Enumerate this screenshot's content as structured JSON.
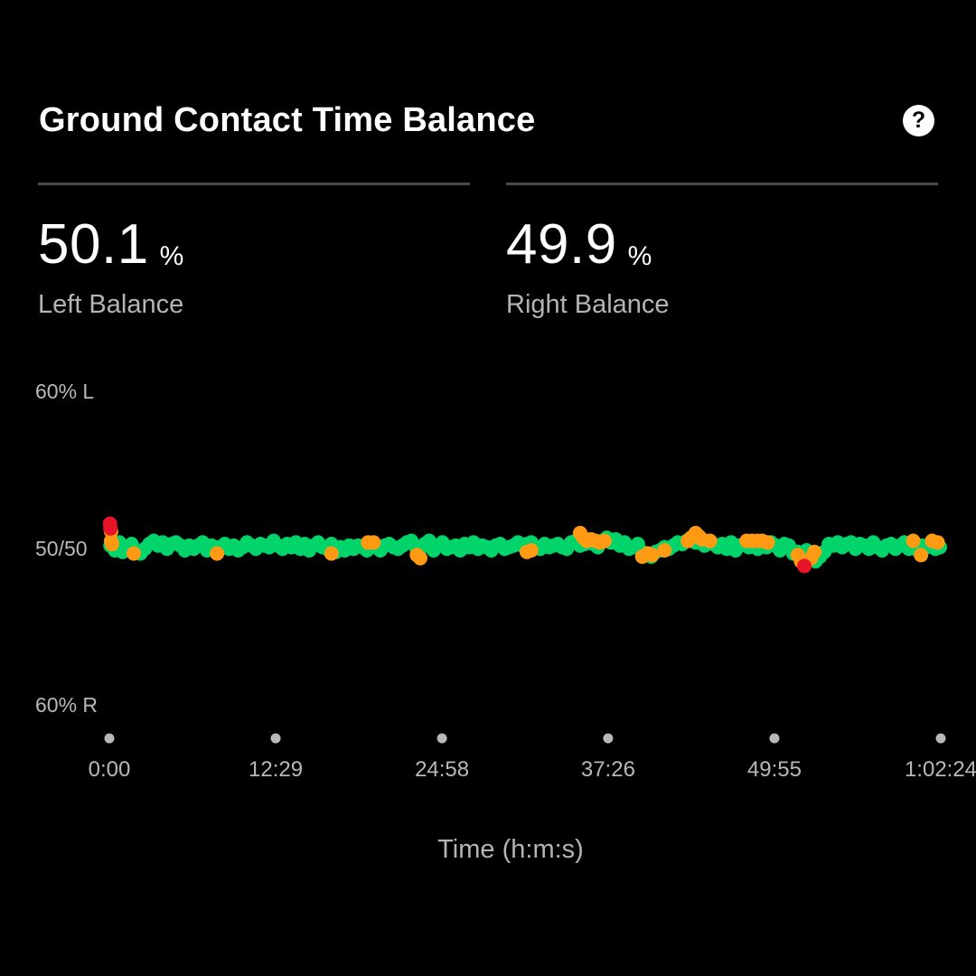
{
  "header": {
    "title": "Ground Contact Time Balance",
    "help_icon": "help-circle-icon"
  },
  "stats": {
    "left": {
      "value": "50.1",
      "unit": "%",
      "label": "Left Balance"
    },
    "right": {
      "value": "49.9",
      "unit": "%",
      "label": "Right Balance"
    }
  },
  "colors": {
    "green": "#00d46a",
    "orange": "#ff9a12",
    "red": "#e8142a",
    "divider": "#4a4a4a",
    "muted_text": "#b4b4b4"
  },
  "chart_data": {
    "type": "scatter",
    "title": "",
    "xlabel": "Time (h:m:s)",
    "ylabel": "",
    "y_tick_labels": {
      "top": "60% L",
      "middle": "50/50",
      "bottom": "60% R"
    },
    "ylim": [
      -10,
      10
    ],
    "y_meaning": "positive = left balance above 50%, negative = right balance above 50%",
    "xlim": [
      0,
      3744
    ],
    "x_ticks": [
      0,
      749,
      1498,
      2246,
      2995,
      3744
    ],
    "x_tick_labels": [
      "0:00",
      "12:29",
      "24:58",
      "37:26",
      "49:55",
      "1:02:24"
    ],
    "series": [
      {
        "color_key": "green",
        "points": [
          [
            5,
            0.1
          ],
          [
            25,
            -0.2
          ],
          [
            45,
            0.3
          ],
          [
            60,
            -0.3
          ],
          [
            80,
            -0.1
          ],
          [
            100,
            0.2
          ],
          [
            120,
            -0.2
          ],
          [
            140,
            -0.4
          ],
          [
            160,
            -0.1
          ],
          [
            180,
            0.2
          ],
          [
            200,
            0.4
          ],
          [
            220,
            0.1
          ],
          [
            240,
            0.3
          ],
          [
            260,
            -0.1
          ],
          [
            280,
            0.2
          ],
          [
            300,
            0.3
          ],
          [
            320,
            0.1
          ],
          [
            340,
            -0.2
          ],
          [
            360,
            0.1
          ],
          [
            380,
            -0.1
          ],
          [
            400,
            0.1
          ],
          [
            420,
            0.3
          ],
          [
            440,
            -0.2
          ],
          [
            460,
            0.1
          ],
          [
            480,
            0.0
          ],
          [
            500,
            -0.1
          ],
          [
            520,
            0.2
          ],
          [
            540,
            -0.1
          ],
          [
            560,
            0.1
          ],
          [
            580,
            -0.2
          ],
          [
            600,
            0.0
          ],
          [
            620,
            0.3
          ],
          [
            640,
            0.1
          ],
          [
            660,
            -0.1
          ],
          [
            680,
            0.2
          ],
          [
            700,
            0.1
          ],
          [
            720,
            0.0
          ],
          [
            740,
            0.4
          ],
          [
            760,
            0.1
          ],
          [
            780,
            -0.1
          ],
          [
            800,
            0.2
          ],
          [
            820,
            0.0
          ],
          [
            840,
            0.3
          ],
          [
            860,
            -0.1
          ],
          [
            880,
            0.2
          ],
          [
            900,
            -0.2
          ],
          [
            920,
            0.1
          ],
          [
            940,
            0.3
          ],
          [
            960,
            0.0
          ],
          [
            980,
            -0.1
          ],
          [
            1000,
            0.2
          ],
          [
            1020,
            -0.3
          ],
          [
            1040,
            0.0
          ],
          [
            1060,
            -0.2
          ],
          [
            1080,
            0.1
          ],
          [
            1100,
            -0.1
          ],
          [
            1120,
            0.1
          ],
          [
            1140,
            0.0
          ],
          [
            1160,
            -0.2
          ],
          [
            1180,
            0.1
          ],
          [
            1200,
            0.0
          ],
          [
            1220,
            -0.2
          ],
          [
            1240,
            0.1
          ],
          [
            1260,
            0.2
          ],
          [
            1280,
            0.0
          ],
          [
            1300,
            -0.1
          ],
          [
            1320,
            0.1
          ],
          [
            1340,
            0.3
          ],
          [
            1360,
            0.4
          ],
          [
            1380,
            0.0
          ],
          [
            1400,
            -0.1
          ],
          [
            1420,
            0.2
          ],
          [
            1440,
            0.4
          ],
          [
            1460,
            -0.2
          ],
          [
            1480,
            0.1
          ],
          [
            1500,
            0.3
          ],
          [
            1520,
            -0.1
          ],
          [
            1540,
            0.0
          ],
          [
            1560,
            0.1
          ],
          [
            1580,
            -0.2
          ],
          [
            1600,
            0.2
          ],
          [
            1620,
            0.0
          ],
          [
            1640,
            0.3
          ],
          [
            1660,
            -0.1
          ],
          [
            1680,
            0.1
          ],
          [
            1700,
            0.0
          ],
          [
            1720,
            -0.2
          ],
          [
            1740,
            0.1
          ],
          [
            1760,
            0.2
          ],
          [
            1780,
            -0.1
          ],
          [
            1800,
            0.0
          ],
          [
            1820,
            0.1
          ],
          [
            1840,
            0.3
          ],
          [
            1860,
            0.1
          ],
          [
            1880,
            0.2
          ],
          [
            1900,
            0.3
          ],
          [
            1920,
            0.0
          ],
          [
            1940,
            -0.1
          ],
          [
            1960,
            0.2
          ],
          [
            1980,
            0.0
          ],
          [
            2000,
            0.1
          ],
          [
            2020,
            0.2
          ],
          [
            2040,
            0.0
          ],
          [
            2060,
            -0.1
          ],
          [
            2080,
            0.3
          ],
          [
            2100,
            0.4
          ],
          [
            2120,
            0.1
          ],
          [
            2140,
            0.2
          ],
          [
            2160,
            0.4
          ],
          [
            2180,
            0.2
          ],
          [
            2200,
            0.0
          ],
          [
            2220,
            0.4
          ],
          [
            2240,
            0.6
          ],
          [
            2260,
            0.3
          ],
          [
            2280,
            0.5
          ],
          [
            2300,
            0.1
          ],
          [
            2320,
            0.3
          ],
          [
            2340,
            -0.1
          ],
          [
            2360,
            0.0
          ],
          [
            2380,
            0.2
          ],
          [
            2400,
            -0.3
          ],
          [
            2420,
            -0.4
          ],
          [
            2440,
            -0.6
          ],
          [
            2460,
            -0.3
          ],
          [
            2480,
            -0.2
          ],
          [
            2500,
            0.0
          ],
          [
            2520,
            -0.1
          ],
          [
            2540,
            0.1
          ],
          [
            2560,
            0.3
          ],
          [
            2580,
            0.2
          ],
          [
            2600,
            0.4
          ],
          [
            2620,
            0.6
          ],
          [
            2640,
            0.3
          ],
          [
            2660,
            0.5
          ],
          [
            2680,
            0.1
          ],
          [
            2700,
            0.4
          ],
          [
            2720,
            0.2
          ],
          [
            2740,
            0.0
          ],
          [
            2760,
            0.2
          ],
          [
            2780,
            -0.1
          ],
          [
            2800,
            0.3
          ],
          [
            2820,
            -0.2
          ],
          [
            2840,
            0.1
          ],
          [
            2860,
            0.2
          ],
          [
            2880,
            0.0
          ],
          [
            2900,
            0.3
          ],
          [
            2920,
            -0.1
          ],
          [
            2940,
            0.2
          ],
          [
            2960,
            0.0
          ],
          [
            2980,
            0.3
          ],
          [
            3000,
            0.1
          ],
          [
            3020,
            -0.2
          ],
          [
            3040,
            0.2
          ],
          [
            3060,
            0.1
          ],
          [
            3080,
            -0.4
          ],
          [
            3100,
            -0.3
          ],
          [
            3120,
            -0.4
          ],
          [
            3140,
            -0.2
          ],
          [
            3160,
            -0.5
          ],
          [
            3180,
            -0.9
          ],
          [
            3200,
            -0.6
          ],
          [
            3220,
            -0.3
          ],
          [
            3240,
            0.2
          ],
          [
            3260,
            0.1
          ],
          [
            3280,
            0.3
          ],
          [
            3300,
            0.0
          ],
          [
            3320,
            0.2
          ],
          [
            3340,
            0.3
          ],
          [
            3360,
            -0.1
          ],
          [
            3380,
            0.2
          ],
          [
            3400,
            0.1
          ],
          [
            3420,
            -0.1
          ],
          [
            3440,
            0.3
          ],
          [
            3460,
            0.0
          ],
          [
            3480,
            -0.2
          ],
          [
            3500,
            0.1
          ],
          [
            3520,
            0.2
          ],
          [
            3540,
            -0.1
          ],
          [
            3560,
            0.1
          ],
          [
            3580,
            0.3
          ],
          [
            3600,
            -0.1
          ],
          [
            3620,
            0.0
          ],
          [
            3640,
            -0.2
          ],
          [
            3660,
            0.1
          ],
          [
            3680,
            0.0
          ],
          [
            3700,
            0.2
          ],
          [
            3720,
            -0.1
          ],
          [
            3740,
            0.0
          ]
        ]
      },
      {
        "color_key": "orange",
        "points": [
          [
            8,
            1.0
          ],
          [
            8,
            0.4
          ],
          [
            12,
            0.2
          ],
          [
            110,
            -0.4
          ],
          [
            485,
            -0.4
          ],
          [
            1000,
            -0.4
          ],
          [
            1165,
            0.3
          ],
          [
            1190,
            0.3
          ],
          [
            1385,
            -0.5
          ],
          [
            1400,
            -0.7
          ],
          [
            1880,
            -0.3
          ],
          [
            1900,
            -0.2
          ],
          [
            2120,
            0.9
          ],
          [
            2135,
            0.6
          ],
          [
            2150,
            0.4
          ],
          [
            2170,
            0.5
          ],
          [
            2190,
            0.4
          ],
          [
            2210,
            0.3
          ],
          [
            2230,
            0.4
          ],
          [
            2400,
            -0.6
          ],
          [
            2425,
            -0.4
          ],
          [
            2445,
            -0.5
          ],
          [
            2500,
            -0.2
          ],
          [
            2605,
            0.4
          ],
          [
            2620,
            0.6
          ],
          [
            2640,
            0.9
          ],
          [
            2655,
            0.7
          ],
          [
            2670,
            0.5
          ],
          [
            2705,
            0.4
          ],
          [
            2870,
            0.4
          ],
          [
            2895,
            0.4
          ],
          [
            2920,
            0.4
          ],
          [
            2940,
            0.4
          ],
          [
            2965,
            0.3
          ],
          [
            3100,
            -0.5
          ],
          [
            3115,
            -0.9
          ],
          [
            3135,
            -1.0
          ],
          [
            3160,
            -0.7
          ],
          [
            3175,
            -0.3
          ],
          [
            3620,
            0.4
          ],
          [
            3655,
            -0.5
          ],
          [
            3705,
            0.4
          ],
          [
            3730,
            0.3
          ]
        ]
      },
      {
        "color_key": "red",
        "points": [
          [
            3,
            1.5
          ],
          [
            5,
            1.2
          ],
          [
            3130,
            -1.2
          ]
        ]
      }
    ]
  }
}
